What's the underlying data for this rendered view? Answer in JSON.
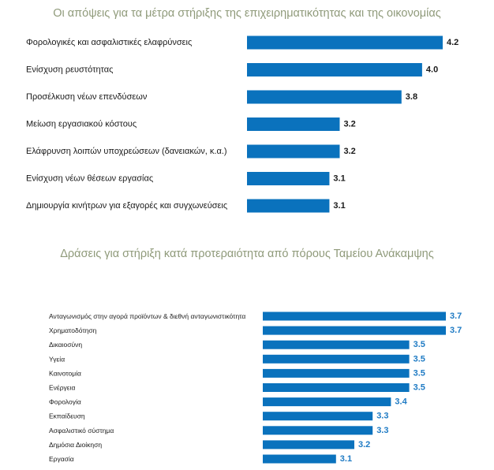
{
  "chart_data": [
    {
      "type": "bar",
      "orientation": "horizontal",
      "title": "Οι απόψεις για τα μέτρα στήριξης της επιχειρηματικότητας και της οικονομίας",
      "categories": [
        "Φορολογικές και ασφαλιστικές ελαφρύνσεις",
        "Ενίσχυση ρευστότητας",
        "Προσέλκυση νέων επενδύσεων",
        "Μείωση εργασιακού κόστους",
        "Ελάφρυνση λοιπών υποχρεώσεων (δανειακών, κ.α.)",
        "Ενίσχυση νέων θέσεων εργασίας",
        "Δημιουργία κινήτρων για εξαγορές και συγχωνεύσεις"
      ],
      "values": [
        4.2,
        4.0,
        3.8,
        3.2,
        3.2,
        3.1,
        3.1
      ],
      "value_labels": [
        "4.2",
        "4.0",
        "3.8",
        "3.2",
        "3.2",
        "3.1",
        "3.1"
      ],
      "color": "#0a72bd",
      "value_label_color": "#1a1a1a",
      "axis_range": [
        2.3,
        4.2
      ],
      "grid": false,
      "legend": "none"
    },
    {
      "type": "bar",
      "orientation": "horizontal",
      "title": "Δράσεις για στήριξη κατά προτεραιότητα από πόρους Ταμείου Ανάκαμψης",
      "categories": [
        "Ανταγωνισμός στην αγορά προϊόντων & διεθνή ανταγωνιστικότητα",
        "Χρηματοδότηση",
        "Δικαιοσύνη",
        "Υγεία",
        "Καινοτομία",
        "Ενέργεια",
        "Φορολογία",
        "Εκπαίδευση",
        "Ασφαλιστικό σύστημα",
        "Δημόσια Διοίκηση",
        "Εργασία"
      ],
      "values": [
        3.7,
        3.7,
        3.5,
        3.5,
        3.5,
        3.5,
        3.4,
        3.3,
        3.3,
        3.2,
        3.1
      ],
      "value_labels": [
        "3.7",
        "3.7",
        "3.5",
        "3.5",
        "3.5",
        "3.5",
        "3.4",
        "3.3",
        "3.3",
        "3.2",
        "3.1"
      ],
      "color": "#0a72bd",
      "value_label_color": "#1f7bc4",
      "axis_range": [
        2.7,
        3.7
      ],
      "grid": false,
      "legend": "none"
    }
  ]
}
